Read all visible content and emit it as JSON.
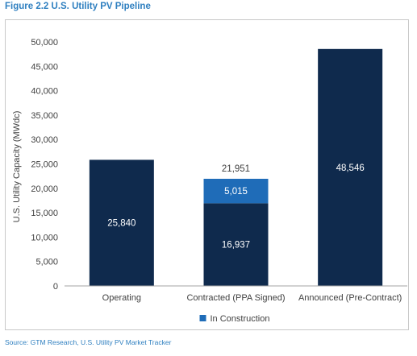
{
  "figure": {
    "title": "Figure 2.2 U.S. Utility PV Pipeline",
    "source": "Source:  GTM Research, U.S. Utility PV Market Tracker"
  },
  "colors": {
    "dark": "#0f2a4d",
    "construction": "#1f6cb8",
    "title": "#2e7fc0",
    "axis": "#595959"
  },
  "chart_data": {
    "type": "bar",
    "stacked": true,
    "categories": [
      "Operating",
      "Contracted (PPA Signed)",
      "Announced (Pre-Contract)"
    ],
    "series": [
      {
        "values": [
          25840,
          16937,
          48546
        ],
        "color": "#0f2a4d"
      },
      {
        "name": "In Construction",
        "values": [
          0,
          5015,
          0
        ],
        "color": "#1f6cb8"
      }
    ],
    "totals": [
      null,
      "21,951",
      null
    ],
    "data_labels": [
      [
        "25,840",
        "16,937",
        "48,546"
      ],
      [
        null,
        "5,015",
        null
      ]
    ],
    "yticks": [
      "0",
      "5,000",
      "10,000",
      "15,000",
      "20,000",
      "25,000",
      "30,000",
      "35,000",
      "40,000",
      "45,000",
      "50,000"
    ],
    "ylim": [
      0,
      50000
    ],
    "ylabel": "U.S. Utility Capacity (MWdc)",
    "xlabel": "",
    "legend_position": "bottom",
    "grid": false
  }
}
